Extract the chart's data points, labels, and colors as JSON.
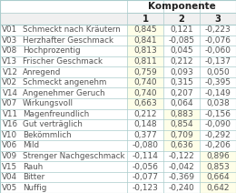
{
  "title": "Komponente",
  "col_headers": [
    "1",
    "2",
    "3"
  ],
  "rows": [
    {
      "code": "V01",
      "label": "Schmeckt nach Kräutern",
      "vals": [
        0.845,
        0.121,
        -0.223
      ]
    },
    {
      "code": "V03",
      "label": "Herzhafter Geschmack",
      "vals": [
        0.841,
        -0.085,
        -0.076
      ]
    },
    {
      "code": "V08",
      "label": "Hochprozentig",
      "vals": [
        0.813,
        0.045,
        -0.06
      ]
    },
    {
      "code": "V13",
      "label": "Frischer Geschmack",
      "vals": [
        0.811,
        0.212,
        -0.137
      ]
    },
    {
      "code": "V12",
      "label": "Anregend",
      "vals": [
        0.759,
        0.093,
        0.05
      ]
    },
    {
      "code": "V02",
      "label": "Schmeckt angenehm",
      "vals": [
        0.74,
        0.315,
        -0.395
      ]
    },
    {
      "code": "V14",
      "label": "Angenehmer Geruch",
      "vals": [
        0.74,
        0.207,
        -0.149
      ]
    },
    {
      "code": "V07",
      "label": "Wirkungsvoll",
      "vals": [
        0.663,
        0.064,
        0.038
      ]
    },
    {
      "code": "V11",
      "label": "Magenfreundlich",
      "vals": [
        0.212,
        0.883,
        -0.156
      ]
    },
    {
      "code": "V16",
      "label": "Gut verträglich",
      "vals": [
        0.148,
        0.854,
        -0.09
      ]
    },
    {
      "code": "V10",
      "label": "Bekömmlich",
      "vals": [
        0.377,
        0.709,
        -0.292
      ]
    },
    {
      "code": "V06",
      "label": "Mild",
      "vals": [
        -0.08,
        0.636,
        -0.206
      ]
    },
    {
      "code": "V09",
      "label": "Strenger Nachgeschmack",
      "vals": [
        -0.114,
        -0.122,
        0.896
      ]
    },
    {
      "code": "V15",
      "label": "Rauh",
      "vals": [
        -0.056,
        -0.042,
        0.853
      ]
    },
    {
      "code": "V04",
      "label": "Bitter",
      "vals": [
        -0.077,
        -0.369,
        0.664
      ]
    },
    {
      "code": "V05",
      "label": "Nuffig",
      "vals": [
        -0.123,
        -0.24,
        0.642
      ]
    }
  ],
  "highlight_col_per_row": [
    0,
    0,
    0,
    0,
    0,
    0,
    0,
    0,
    1,
    1,
    1,
    1,
    2,
    2,
    2,
    2
  ],
  "highlight_color": "#FEFEE8",
  "border_color": "#AACCCC",
  "header_bg": "#F2F2F2",
  "text_color": "#555555",
  "label_fontsize": 6.3,
  "val_fontsize": 6.5,
  "header_fontsize": 7.2,
  "title_fontsize": 7.5
}
